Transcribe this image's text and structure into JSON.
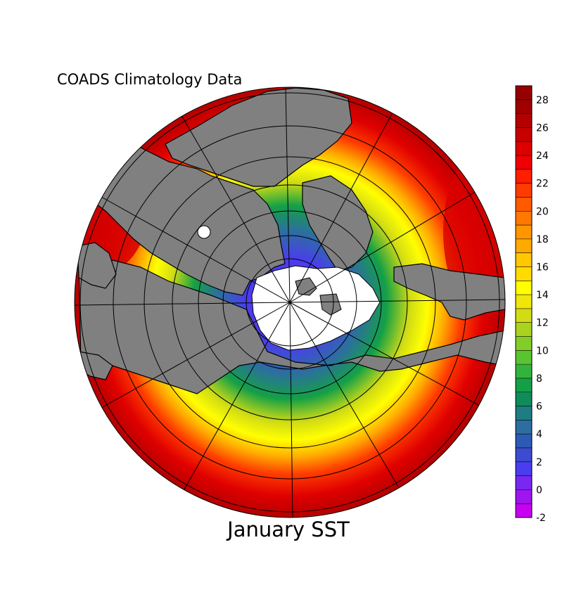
{
  "header": {
    "source_label": "COADS Climatology Data"
  },
  "footer": {
    "title": "January SST"
  },
  "colorbar": {
    "min": -2,
    "max": 29,
    "step": 1,
    "tick_labels": [
      "-2",
      "0",
      "2",
      "4",
      "6",
      "8",
      "10",
      "12",
      "14",
      "16",
      "18",
      "20",
      "22",
      "24",
      "26",
      "28"
    ],
    "colors": [
      "#c800f0",
      "#a014f0",
      "#7828f0",
      "#4b3cf0",
      "#3c4bd2",
      "#2d5ab4",
      "#2d6ea0",
      "#1e7d82",
      "#0f8c5a",
      "#14a046",
      "#32b43c",
      "#5ac332",
      "#82cd28",
      "#aad21e",
      "#d2dc14",
      "#f0e60a",
      "#ffff00",
      "#ffdc00",
      "#ffc800",
      "#ffaa00",
      "#ff9600",
      "#ff7800",
      "#ff5a00",
      "#ff3c00",
      "#ff1e00",
      "#f00000",
      "#dc0000",
      "#c80000",
      "#b40000",
      "#a00000",
      "#960000"
    ]
  },
  "map": {
    "projection": "north-polar-stereographic",
    "land_color": "#808080",
    "ice_color": "#ffffff",
    "graticule": "on",
    "variable": "sea surface temperature"
  }
}
